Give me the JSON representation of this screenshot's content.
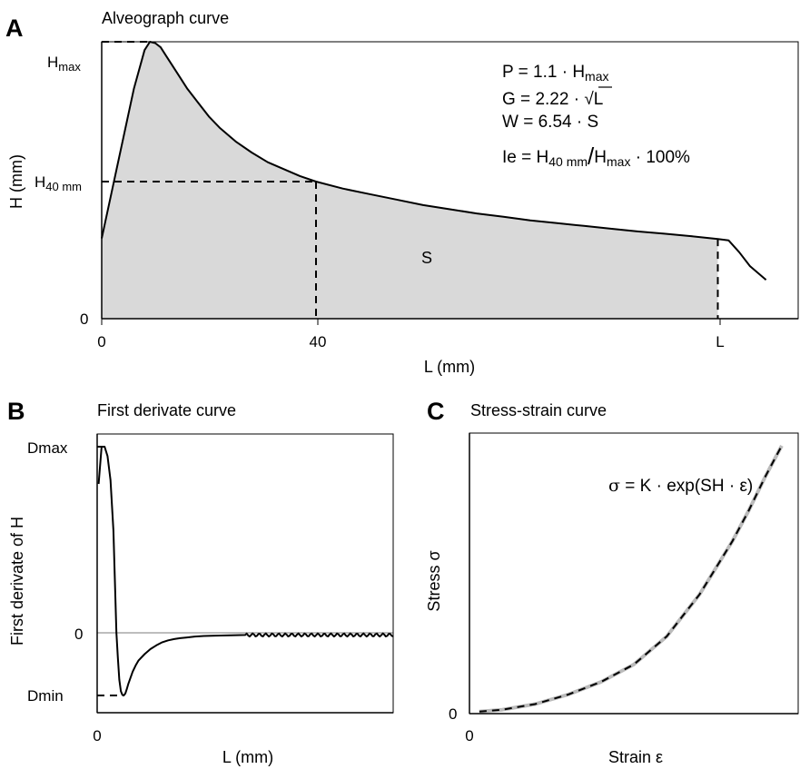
{
  "chart_data": [
    {
      "panel": "A",
      "type": "area",
      "title": "Alveograph curve",
      "xlabel": "L (mm)",
      "ylabel": "H (mm)",
      "xticks": [
        "0",
        "40",
        "L"
      ],
      "yticks": [
        "H",
        "H",
        "0"
      ],
      "ytick_subscripts": [
        "max",
        "40 mm",
        ""
      ],
      "xlim": [
        0,
        130
      ],
      "ylim": [
        0,
        100
      ],
      "area_label": "S",
      "formulas": {
        "p_lhs": "P",
        "p_coef": "1.1",
        "p_var": "H",
        "p_sub": "max",
        "g_lhs": "G",
        "g_coef": "2.22",
        "g_var": "L",
        "w_lhs": "W",
        "w_coef": "6.54",
        "w_var": "S",
        "ie_lhs": "Ie",
        "ie_num": "H",
        "ie_num_sub": "40 mm",
        "ie_den": "H",
        "ie_den_sub": "max",
        "ie_tail": "100%"
      },
      "x": [
        0,
        2,
        4,
        6,
        8,
        9,
        10,
        11,
        12,
        14,
        16,
        18,
        20,
        22,
        25,
        28,
        31,
        34,
        37,
        40,
        45,
        50,
        55,
        60,
        65,
        70,
        75,
        80,
        85,
        90,
        95,
        100,
        105,
        110,
        115,
        117,
        119,
        121,
        124
      ],
      "y": [
        29,
        47,
        65,
        83,
        97,
        100,
        99.5,
        98,
        95,
        89,
        83,
        78,
        73,
        69,
        64,
        60,
        56.5,
        54,
        51.5,
        49.5,
        47,
        45,
        43,
        41,
        39.5,
        38,
        36.8,
        35.5,
        34.5,
        33.5,
        32.5,
        31.5,
        30.7,
        29.8,
        28.8,
        28.3,
        24,
        19,
        14
      ],
      "s_region_end_x": 115,
      "markers": [
        {
          "x": 9,
          "y": 100
        },
        {
          "x": 40,
          "y": 49.5
        },
        {
          "x": 115,
          "y": 28.8
        }
      ]
    },
    {
      "panel": "B",
      "type": "line",
      "title": "First derivate curve",
      "xlabel": "L (mm)",
      "ylabel": "First derivate of H",
      "xticks": [
        "0"
      ],
      "yticks": [
        "Dmax",
        "0",
        "Dmin"
      ],
      "xlim": [
        0,
        100
      ],
      "ylim": [
        -1,
        1
      ],
      "x": [
        0.5,
        1.5,
        2.5,
        3.5,
        4.5,
        5.5,
        6.5,
        7.0,
        7.5,
        8.0,
        8.5,
        9.0,
        9.5,
        10.0,
        10.5,
        11.0,
        12.0,
        13.0,
        14.0,
        16.0,
        18.0,
        20.0,
        22.0,
        24.0,
        26.0,
        28.0,
        30.0,
        33.0,
        36.0,
        40.0,
        45.0,
        50.0
      ],
      "y": [
        0.8,
        1.0,
        1.0,
        0.95,
        0.82,
        0.55,
        0.0,
        -0.4,
        -0.75,
        -0.93,
        -0.99,
        -1.0,
        -0.97,
        -0.9,
        -0.82,
        -0.75,
        -0.62,
        -0.52,
        -0.44,
        -0.34,
        -0.26,
        -0.2,
        -0.15,
        -0.12,
        -0.1,
        -0.085,
        -0.075,
        -0.06,
        -0.05,
        -0.045,
        -0.04,
        -0.035
      ],
      "oscillation": {
        "start_x": 30,
        "end_x": 100,
        "mean": -0.03,
        "amplitude": 0.025,
        "period": 2.2
      }
    },
    {
      "panel": "C",
      "type": "line",
      "title": "Stress-strain curve",
      "xlabel": "Strain ε",
      "ylabel": "Stress σ",
      "xticks": [
        "0"
      ],
      "yticks": [
        "0"
      ],
      "xlim": [
        0,
        100
      ],
      "ylim": [
        0,
        100
      ],
      "formula": {
        "lhs": "σ",
        "rhs": "K · exp(SH · ε)"
      },
      "series": [
        {
          "name": "",
          "style": "measured",
          "color": "#bbbbbb"
        },
        {
          "name": "",
          "style": "fit",
          "color": "#000000"
        }
      ],
      "x": [
        3,
        10,
        20,
        30,
        40,
        50,
        60,
        70,
        80,
        85,
        90,
        95
      ],
      "y": [
        0.7,
        1.4,
        3.4,
        6.8,
        11.3,
        17.5,
        27.5,
        42.5,
        61.5,
        72.5,
        84.5,
        95.5
      ]
    }
  ]
}
